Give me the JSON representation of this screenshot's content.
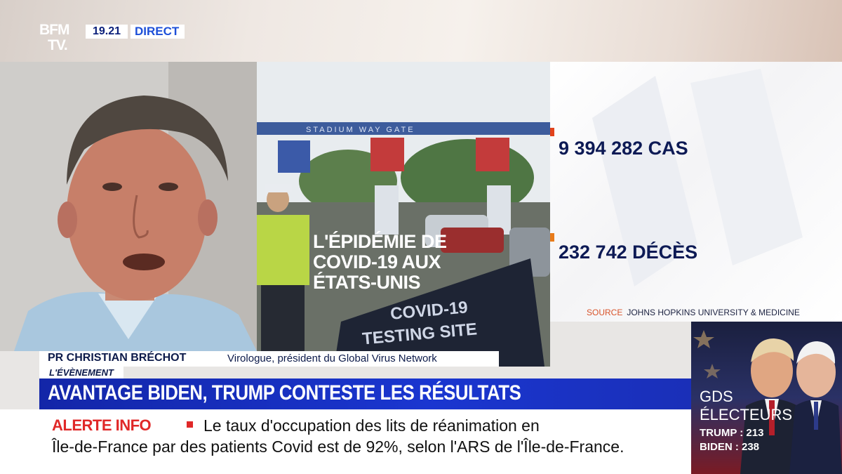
{
  "channel": {
    "logo_line1": "BFM",
    "logo_line2": "TV.",
    "time": "19.21",
    "live_label": "DIRECT"
  },
  "photo_panel": {
    "title_lines": [
      "L'ÉPIDÉMIE DE",
      "COVID-19 AUX",
      "ÉTATS-UNIS"
    ],
    "sign_gate": "STADIUM WAY GATE",
    "sign_testing_1": "COVID-19",
    "sign_testing_2": "TESTING SITE"
  },
  "stats": {
    "cases": "9 394 282 CAS",
    "deaths": "232 742 DÉCÈS",
    "source_label": "SOURCE",
    "source_text": "JOHNS HOPKINS UNIVERSITY & MEDICINE",
    "cases_color": "#e2431b",
    "deaths_color": "#e87b1a"
  },
  "guest": {
    "name": "PR CHRISTIAN BRÉCHOT",
    "role": "Virologue, président du Global Virus Network"
  },
  "headline": {
    "tag": "L'ÉVÈNEMENT",
    "text": "AVANTAGE BIDEN, TRUMP CONTESTE LES RÉSULTATS"
  },
  "electors": {
    "title_line1": "GDS",
    "title_line2": "ÉLECTEURS",
    "trump": "TRUMP : 213",
    "biden": "BIDEN : 238"
  },
  "ticker": {
    "alert_label": "ALERTE INFO",
    "line1": "Le taux d'occupation des lits de réanimation en",
    "line2": "Île-de-France par des patients Covid est de 92%, selon l'ARS de l'Île-de-France."
  }
}
